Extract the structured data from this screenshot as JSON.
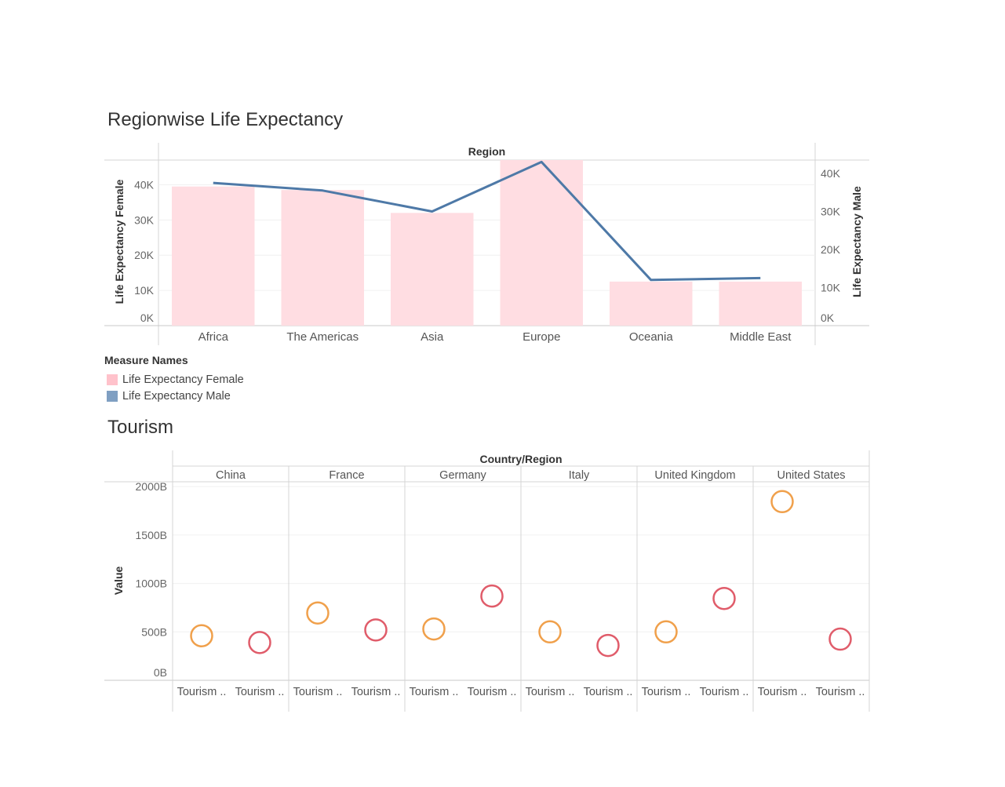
{
  "chart_data": [
    {
      "type": "bar",
      "title": "Regionwise Life Expectancy",
      "column_header": "Region",
      "categories": [
        "Africa",
        "The Americas",
        "Asia",
        "Europe",
        "Oceania",
        "Middle East"
      ],
      "series": [
        {
          "name": "Life Expectancy Female",
          "mark": "bar",
          "axis": "left",
          "color": "#ffdde2",
          "values": [
            39500,
            38500,
            32000,
            47000,
            12500,
            12500
          ]
        },
        {
          "name": "Life Expectancy Male",
          "mark": "line",
          "axis": "right",
          "color": "#4e79a7",
          "values": [
            37500,
            35500,
            30000,
            43000,
            12000,
            12500
          ]
        }
      ],
      "ylabel_left": "Life Expectancy Female",
      "ylabel_right": "Life Expectancy Male",
      "ylim_left": [
        0,
        47000
      ],
      "ylim_right": [
        0,
        43500
      ],
      "yticks_left": [
        {
          "v": 0,
          "label": "0K"
        },
        {
          "v": 10000,
          "label": "10K"
        },
        {
          "v": 20000,
          "label": "20K"
        },
        {
          "v": 30000,
          "label": "30K"
        },
        {
          "v": 40000,
          "label": "40K"
        }
      ],
      "yticks_right": [
        {
          "v": 0,
          "label": "0K"
        },
        {
          "v": 10000,
          "label": "10K"
        },
        {
          "v": 20000,
          "label": "20K"
        },
        {
          "v": 30000,
          "label": "30K"
        },
        {
          "v": 40000,
          "label": "40K"
        }
      ],
      "legend": {
        "title": "Measure Names",
        "placement": "bottom-left",
        "items": [
          {
            "label": "Life Expectancy Female",
            "color": "#ffc2cb"
          },
          {
            "label": "Life Expectancy Male",
            "color": "#7f9fc2"
          }
        ]
      }
    },
    {
      "type": "scatter",
      "title": "Tourism",
      "column_header": "Country/Region",
      "ylabel": "Value",
      "ylim": [
        0,
        2050
      ],
      "yticks": [
        {
          "v": 0,
          "label": "0B"
        },
        {
          "v": 500,
          "label": "500B"
        },
        {
          "v": 1000,
          "label": "1000B"
        },
        {
          "v": 1500,
          "label": "1500B"
        },
        {
          "v": 2000,
          "label": "2000B"
        }
      ],
      "colors": [
        "#f0a04b",
        "#e05c6a"
      ],
      "panels": [
        {
          "name": "China",
          "labels": [
            "Tourism ..",
            "Tourism .."
          ],
          "values": [
            460,
            390
          ]
        },
        {
          "name": "France",
          "labels": [
            "Tourism ..",
            "Tourism .."
          ],
          "values": [
            695,
            520
          ]
        },
        {
          "name": "Germany",
          "labels": [
            "Tourism ..",
            "Tourism .."
          ],
          "values": [
            530,
            870
          ]
        },
        {
          "name": "Italy",
          "labels": [
            "Tourism ..",
            "Tourism .."
          ],
          "values": [
            500,
            360
          ]
        },
        {
          "name": "United Kingdom",
          "labels": [
            "Tourism ..",
            "Tourism .."
          ],
          "values": [
            500,
            845
          ]
        },
        {
          "name": "United States",
          "labels": [
            "Tourism ..",
            "Tourism .."
          ],
          "values": [
            1845,
            425
          ]
        }
      ]
    }
  ]
}
